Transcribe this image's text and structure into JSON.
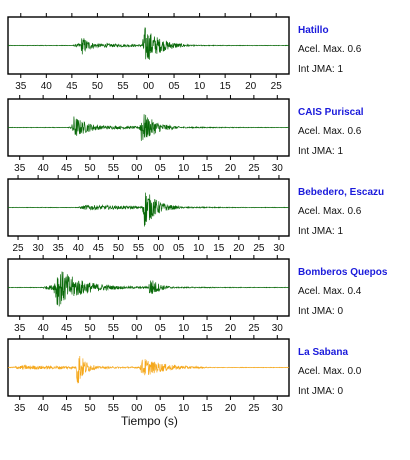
{
  "chart_data": {
    "type": "line",
    "xlabel": "Tiempo (s)",
    "panels": [
      {
        "station": "Hatillo",
        "accel": "Acel. Max. 0.6",
        "intensity": "Int JMA: 1",
        "color": "#0a6a0a",
        "tick_labels": [
          "35",
          "40",
          "45",
          "50",
          "55",
          "00",
          "05",
          "10",
          "15",
          "20",
          "25"
        ],
        "show_tick_labels": true,
        "series": [
          {
            "start": 7,
            "end": 29,
            "amp": 0.12
          },
          {
            "start": 8,
            "end": 11,
            "amp": 0.45
          },
          {
            "start": 14.8,
            "end": 20,
            "amp": 0.9
          }
        ]
      },
      {
        "station": "CAIS Puriscal",
        "accel": "Acel. Max. 0.6",
        "intensity": "Int JMA: 1",
        "color": "#0a6a0a",
        "tick_labels": [
          "35",
          "40",
          "45",
          "50",
          "55",
          "00",
          "05",
          "10",
          "15",
          "20",
          "25",
          "30"
        ],
        "show_tick_labels": true,
        "series": [
          {
            "start": 6.5,
            "end": 31,
            "amp": 0.12
          },
          {
            "start": 7,
            "end": 12,
            "amp": 0.55
          },
          {
            "start": 14.5,
            "end": 19,
            "amp": 0.8
          }
        ]
      },
      {
        "station": "Bebedero, Escazu",
        "accel": "Acel. Max. 0.6",
        "intensity": "Int JMA: 1",
        "color": "#0a6a0a",
        "tick_labels": [
          "25",
          "30",
          "35",
          "40",
          "45",
          "50",
          "55",
          "00",
          "05",
          "10",
          "15",
          "20",
          "25",
          "30"
        ],
        "show_tick_labels": true,
        "series": [
          {
            "start": 7.5,
            "end": 31,
            "amp": 0.12
          },
          {
            "start": 14.8,
            "end": 19,
            "amp": 0.95
          }
        ]
      },
      {
        "station": "Bomberos Quepos",
        "accel": "Acel. Max. 0.4",
        "intensity": "Int JMA: 0",
        "color": "#0a6a0a",
        "tick_labels": [
          "35",
          "40",
          "45",
          "50",
          "55",
          "00",
          "05",
          "10",
          "15",
          "20",
          "25",
          "30"
        ],
        "show_tick_labels": true,
        "series": [
          {
            "start": 3.5,
            "end": 31,
            "amp": 0.12
          },
          {
            "start": 5,
            "end": 13,
            "amp": 0.95
          },
          {
            "start": 15.5,
            "end": 18.5,
            "amp": 0.5
          }
        ]
      },
      {
        "station": "La Sabana",
        "accel": "Acel. Max. 0.0",
        "intensity": "Int JMA: 0",
        "color": "#f5a81c",
        "tick_labels": [
          "35",
          "40",
          "45",
          "50",
          "55",
          "00",
          "05",
          "10",
          "15",
          "20",
          "25",
          "30"
        ],
        "show_tick_labels": true,
        "series": [
          {
            "start": 0,
            "end": 31,
            "amp": 0.1
          },
          {
            "start": 7.5,
            "end": 10,
            "amp": 0.95
          },
          {
            "start": 14.5,
            "end": 22,
            "amp": 0.45
          }
        ]
      }
    ]
  }
}
